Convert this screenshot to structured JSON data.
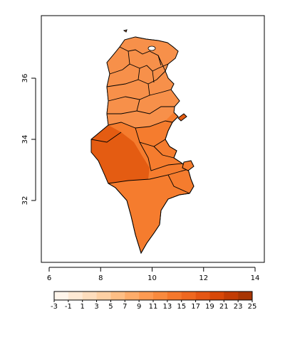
{
  "chart_data": {
    "type": "heatmap",
    "title": "",
    "xlabel": "",
    "ylabel": "",
    "x_ticks": [
      6,
      8,
      10,
      12,
      14
    ],
    "y_ticks": [
      32,
      34,
      36
    ],
    "xlim": [
      5.9,
      14.4
    ],
    "ylim": [
      30.1,
      38.1
    ],
    "legend": {
      "placement": "bottom",
      "breaks": [
        -3,
        -1,
        1,
        3,
        5,
        7,
        9,
        11,
        13,
        15,
        17,
        19,
        21,
        23,
        25
      ],
      "colors": [
        "#fff5eb",
        "#fee9d4",
        "#fdddbd",
        "#fdd0a4",
        "#fdbe85",
        "#fdac6a",
        "#fd9a52",
        "#f98a3e",
        "#f5782c",
        "#ef6820",
        "#e55614",
        "#d84808",
        "#c23c04",
        "#a83503"
      ]
    },
    "region_color_main": "#f57c2e",
    "region_color_north": "#f7904a",
    "region_color_hot": "#e45c12"
  }
}
